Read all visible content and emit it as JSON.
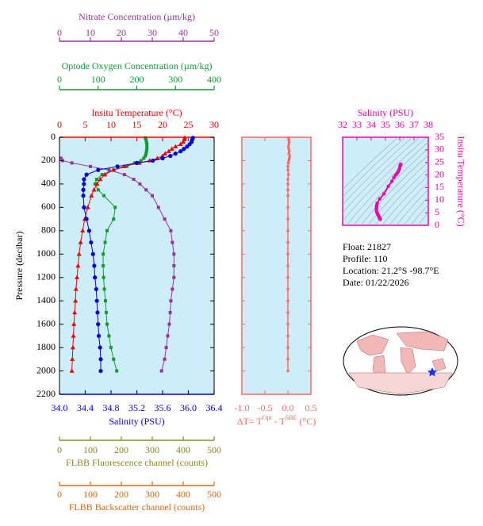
{
  "chart_data": [
    {
      "type": "profile",
      "ylabel": "Pressure (decibar)",
      "ylim": [
        0,
        2200
      ],
      "yticks": [
        0,
        200,
        400,
        600,
        800,
        1000,
        1200,
        1400,
        1600,
        1800,
        2000,
        2200
      ],
      "y_inverted": true,
      "background": "#cdeef8",
      "pressure": [
        5,
        20,
        40,
        60,
        80,
        100,
        120,
        140,
        160,
        180,
        200,
        220,
        250,
        280,
        320,
        360,
        400,
        450,
        500,
        600,
        700,
        800,
        900,
        1000,
        1100,
        1200,
        1300,
        1400,
        1500,
        1600,
        1700,
        1800,
        1900,
        2000
      ],
      "axes": [
        {
          "label": "Nitrate Concentration (µm/kg)",
          "color": "#993399",
          "marker": "square",
          "xlim": [
            0,
            50
          ],
          "xticks": [
            0,
            10,
            20,
            30,
            40,
            50
          ],
          "values": [
            null,
            null,
            null,
            null,
            null,
            null,
            null,
            null,
            null,
            0.5,
            1,
            4,
            10,
            16,
            21,
            24,
            26,
            28,
            30,
            32,
            34,
            36,
            36.5,
            37,
            37,
            37,
            36.5,
            36,
            35.8,
            35.5,
            35,
            34.5,
            34,
            33
          ]
        },
        {
          "label": "Optode Oxygen Concentration (µm/kg)",
          "color": "#119933",
          "marker": "square",
          "xlim": [
            0,
            400
          ],
          "xticks": [
            0,
            100,
            200,
            300,
            400
          ],
          "values": [
            222,
            224,
            225,
            226,
            226,
            226,
            225,
            224,
            222,
            218,
            211,
            195,
            174,
            140,
            110,
            96,
            92,
            100,
            115,
            144,
            140,
            123,
            118,
            113,
            113,
            114,
            116,
            119,
            121,
            123,
            128,
            133,
            140,
            148
          ]
        },
        {
          "label": "Insitu Temperature (°C)",
          "color": "#ee0000",
          "marker": "triangle",
          "xlim": [
            0,
            30
          ],
          "xticks": [
            0,
            5,
            10,
            15,
            20,
            25,
            30
          ],
          "values": [
            24.3,
            24.2,
            24.0,
            23.5,
            22.5,
            21.8,
            21.2,
            20.5,
            20.0,
            19.0,
            17.5,
            15.5,
            12.5,
            10.5,
            8.8,
            7.9,
            7.3,
            6.7,
            6.2,
            5.5,
            4.9,
            4.5,
            4.1,
            3.8,
            3.6,
            3.4,
            3.2,
            3.1,
            2.95,
            2.8,
            2.7,
            2.6,
            2.5,
            2.4
          ]
        },
        {
          "label": "Salinity (PSU)",
          "color": "#0000dd",
          "marker": "circle",
          "xlim": [
            34.0,
            36.4
          ],
          "xticks": [
            {
              "value": 34,
              "label": "34.0"
            },
            34.4,
            34.8,
            35.2,
            35.6,
            {
              "value": 36,
              "label": "36.0"
            },
            36.4
          ],
          "values": [
            36.07,
            36.06,
            36.05,
            36.02,
            35.98,
            35.93,
            35.88,
            35.8,
            35.72,
            35.6,
            35.45,
            35.2,
            34.9,
            34.6,
            34.42,
            34.38,
            34.38,
            34.37,
            34.37,
            34.38,
            34.42,
            34.46,
            34.49,
            34.52,
            34.54,
            34.55,
            34.57,
            34.58,
            34.59,
            34.6,
            34.61,
            34.63,
            34.64,
            34.64
          ]
        },
        {
          "label": "FLBB Fluorescence channel (counts)",
          "color": "#888822",
          "xlim": [
            0,
            500
          ],
          "xticks": [
            0,
            100,
            200,
            300,
            400,
            500
          ]
        },
        {
          "label": "FLBB Backscatter channel (counts)",
          "color": "#dd6611",
          "xlim": [
            0,
            500
          ],
          "xticks": [
            0,
            100,
            200,
            300,
            400,
            500
          ]
        }
      ]
    },
    {
      "type": "profile_diff",
      "xlabel": [
        "ΔT= T",
        "Opt",
        " - T",
        "SBE",
        " (°C)"
      ],
      "color": "#ff6666",
      "background": "#cdeef8",
      "xlim": [
        -1.0,
        0.5
      ],
      "xticks": [
        {
          "value": -1,
          "label": "-1.0"
        },
        -0.5,
        {
          "value": 0,
          "label": "0.0"
        },
        0.5
      ],
      "ylim": [
        0,
        2200
      ],
      "yticks": [
        0,
        200,
        400,
        600,
        800,
        1000,
        1200,
        1400,
        1600,
        1800,
        2000,
        2200
      ],
      "pressure": [
        5,
        20,
        40,
        60,
        80,
        100,
        120,
        140,
        160,
        180,
        200,
        220,
        250,
        280,
        320,
        360,
        400,
        450,
        500,
        600,
        700,
        800,
        900,
        1000,
        1100,
        1200,
        1300,
        1400,
        1500,
        1600,
        1700,
        1800,
        1900,
        2000
      ],
      "values": [
        0.01,
        0.02,
        0.03,
        0.02,
        0.01,
        0.02,
        0.03,
        0.02,
        0.04,
        0.03,
        0.02,
        0.01,
        0,
        0,
        0.01,
        0,
        0,
        0,
        0,
        0,
        0,
        0,
        0,
        0,
        0,
        0,
        0,
        0,
        0,
        0,
        0,
        0,
        0,
        0
      ]
    },
    {
      "type": "ts",
      "xlabel": "Salinity (PSU)",
      "ylabel": "Insitu Temperature (°C)",
      "color": "#ee00aa",
      "background": "#cdeef8",
      "xlim": [
        32,
        38
      ],
      "xticks": [
        32,
        33,
        34,
        35,
        36,
        37,
        38
      ],
      "ylim": [
        0,
        35
      ],
      "yticks": [
        0,
        5,
        10,
        15,
        20,
        25,
        30,
        35
      ],
      "x": [
        36.07,
        36.06,
        36.05,
        36.02,
        35.98,
        35.93,
        35.88,
        35.8,
        35.72,
        35.6,
        35.45,
        35.2,
        34.9,
        34.6,
        34.42,
        34.38,
        34.38,
        34.37,
        34.37,
        34.38,
        34.42,
        34.46,
        34.49,
        34.52,
        34.54,
        34.55,
        34.57,
        34.58,
        34.59,
        34.6,
        34.61,
        34.63,
        34.64,
        34.64
      ],
      "y": [
        24.3,
        24.2,
        24.0,
        23.5,
        22.5,
        21.8,
        21.2,
        20.5,
        20.0,
        19.0,
        17.5,
        15.5,
        12.5,
        10.5,
        8.8,
        7.9,
        7.3,
        6.7,
        6.2,
        5.5,
        4.9,
        4.5,
        4.1,
        3.8,
        3.6,
        3.4,
        3.2,
        3.1,
        2.95,
        2.8,
        2.7,
        2.6,
        2.5,
        2.4
      ]
    }
  ],
  "info": [
    "Float:  21827",
    "Profile:  110",
    "Location:  21.2°S  -98.7°E",
    "Date:  01/22/2026"
  ]
}
